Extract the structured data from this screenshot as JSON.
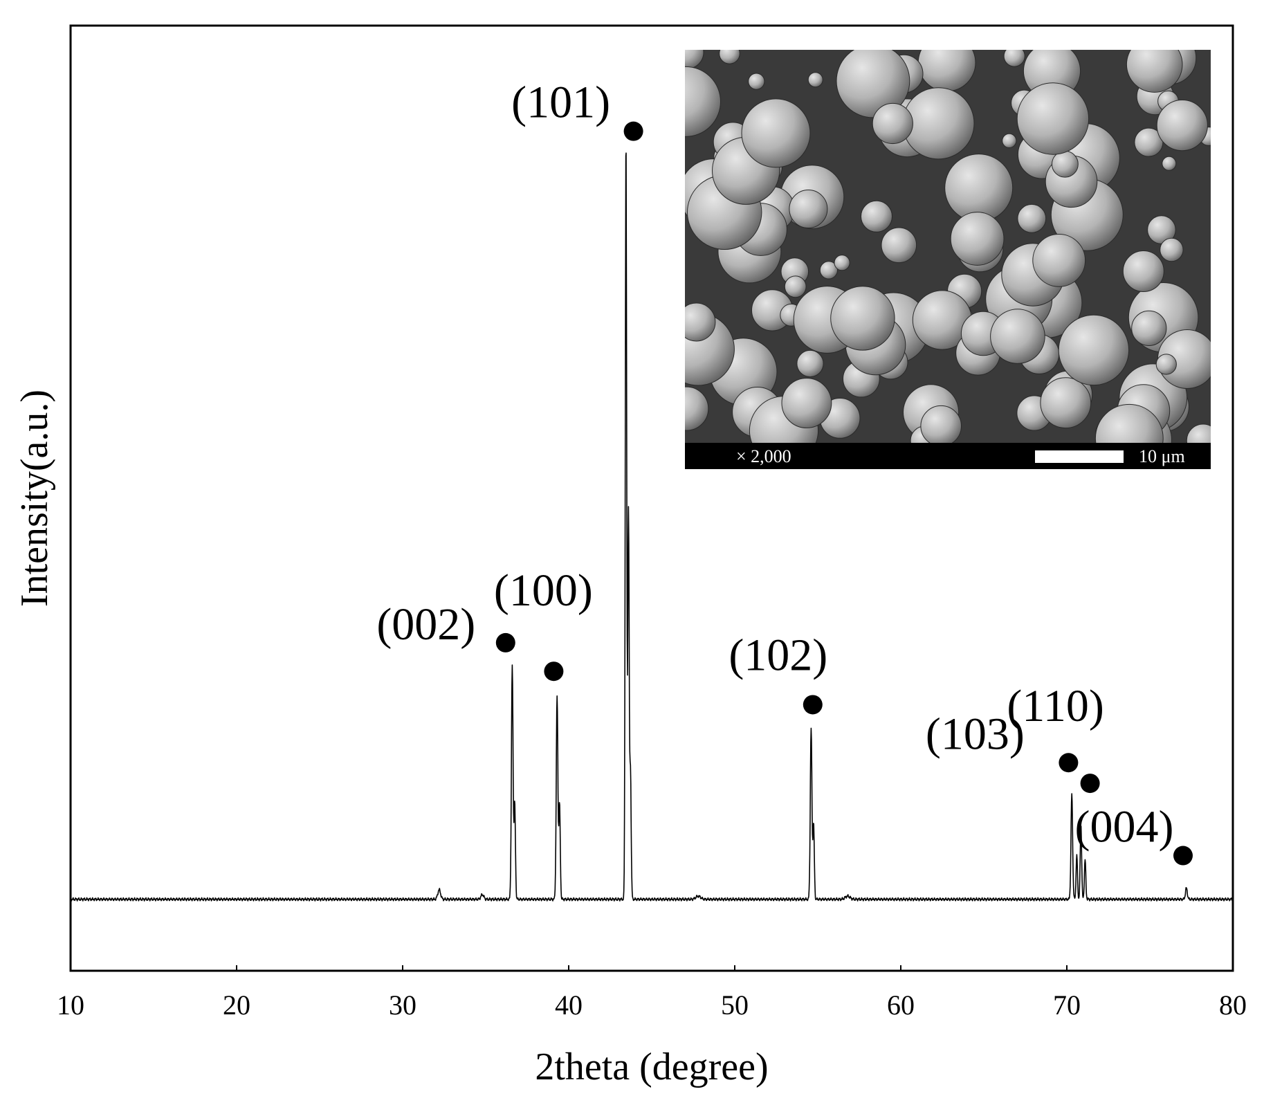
{
  "chart_data": {
    "type": "line",
    "xlabel": "2theta (degree)",
    "ylabel": "Intensity(a.u.)",
    "xlim": [
      10,
      80
    ],
    "ylim": [
      -90,
      1100
    ],
    "xticks": [
      10,
      20,
      30,
      40,
      50,
      60,
      70,
      80
    ],
    "yticks": [],
    "grid": false,
    "baseline": 0,
    "peaks": [
      {
        "x": 32.2,
        "y": 12,
        "w": 0.12
      },
      {
        "x": 34.8,
        "y": 6,
        "w": 0.12
      },
      {
        "x": 36.6,
        "y": 293,
        "w": 0.07
      },
      {
        "x": 36.75,
        "y": 120,
        "w": 0.06
      },
      {
        "x": 39.3,
        "y": 255,
        "w": 0.07
      },
      {
        "x": 39.45,
        "y": 120,
        "w": 0.06
      },
      {
        "x": 43.45,
        "y": 963,
        "w": 0.06
      },
      {
        "x": 43.6,
        "y": 490,
        "w": 0.06
      },
      {
        "x": 43.72,
        "y": 160,
        "w": 0.06
      },
      {
        "x": 47.8,
        "y": 4,
        "w": 0.2
      },
      {
        "x": 54.6,
        "y": 215,
        "w": 0.07
      },
      {
        "x": 54.75,
        "y": 95,
        "w": 0.06
      },
      {
        "x": 56.8,
        "y": 4,
        "w": 0.2
      },
      {
        "x": 70.3,
        "y": 132,
        "w": 0.07
      },
      {
        "x": 70.6,
        "y": 55,
        "w": 0.06
      },
      {
        "x": 70.85,
        "y": 95,
        "w": 0.06
      },
      {
        "x": 71.1,
        "y": 50,
        "w": 0.06
      },
      {
        "x": 77.2,
        "y": 14,
        "w": 0.08
      }
    ],
    "annotations": [
      {
        "label": "(002)",
        "x": 36.2,
        "y": 323
      },
      {
        "label": "(100)",
        "x": 39.1,
        "y": 287
      },
      {
        "label": "(101)",
        "x": 43.9,
        "y": 967
      },
      {
        "label": "(102)",
        "x": 54.7,
        "y": 245
      },
      {
        "label": "(103)",
        "x": 70.1,
        "y": 172
      },
      {
        "label": "(110)",
        "x": 71.4,
        "y": 146
      },
      {
        "label": "(004)",
        "x": 77.0,
        "y": 55
      }
    ]
  },
  "inset": {
    "magnification": "× 2,000",
    "scale_bar": "10 μm"
  }
}
